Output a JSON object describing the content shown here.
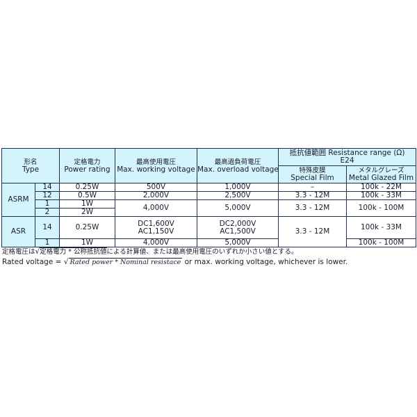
{
  "header": {
    "type": {
      "jp": "形名",
      "en": "Type"
    },
    "power": {
      "jp": "定格電力",
      "en": "Power rating"
    },
    "working": {
      "jp": "最高使用電圧",
      "en": "Max. working voltage"
    },
    "overload": {
      "jp": "最高過負荷電圧",
      "en": "Max. overload voltage"
    },
    "resistance": {
      "jp": "抵抗値範囲 Resistance range (Ω)",
      "series": "E24"
    },
    "special": {
      "jp": "特殊皮膜",
      "en": "Special Film"
    },
    "metal": {
      "jp": "メタルグレーズ",
      "en": "Metal Glazed Film"
    }
  },
  "rows": {
    "asrm": "ASRM",
    "asr": "ASR",
    "r1": {
      "sub": "14",
      "power": "0.25W",
      "working": "500V",
      "overload": "1,000V",
      "special": "–",
      "metal": "100k - 22M"
    },
    "r2": {
      "sub": "12",
      "power": "0.5W",
      "working": "2,000V",
      "overload": "2,500V",
      "special": "3.3 - 12M",
      "metal": "100k - 33M"
    },
    "r3": {
      "sub": "1",
      "power": "1W",
      "working": "4,000V",
      "overload": "5,000V",
      "special": "3.3 - 12M",
      "metal": "100k - 100M"
    },
    "r4": {
      "sub": "2",
      "power": "2W"
    },
    "r5": {
      "sub": "14",
      "power": "0.25W",
      "working1": "DC1,600V",
      "working2": "AC1,150V",
      "overload1": "DC2,000V",
      "overload2": "AC1,500V",
      "special": "3.3 - 12M",
      "metal": "100k - 33M"
    },
    "r6": {
      "sub": "1",
      "power": "1W",
      "working": "4,000V",
      "overload": "5,000V",
      "metal": "100k - 100M"
    }
  },
  "notes": {
    "jp_pre": "定格電圧は",
    "jp_sqrt": "定格電力 * 公称抵抗値",
    "jp_post": "による計算値、または最高使用電圧のいずれか小さい値とする。",
    "en_pre": "Rated voltage = ",
    "en_sqrt": "Rated power  * Nominal resistace",
    "en_post": " or max. working voltage, whichever is lower."
  }
}
